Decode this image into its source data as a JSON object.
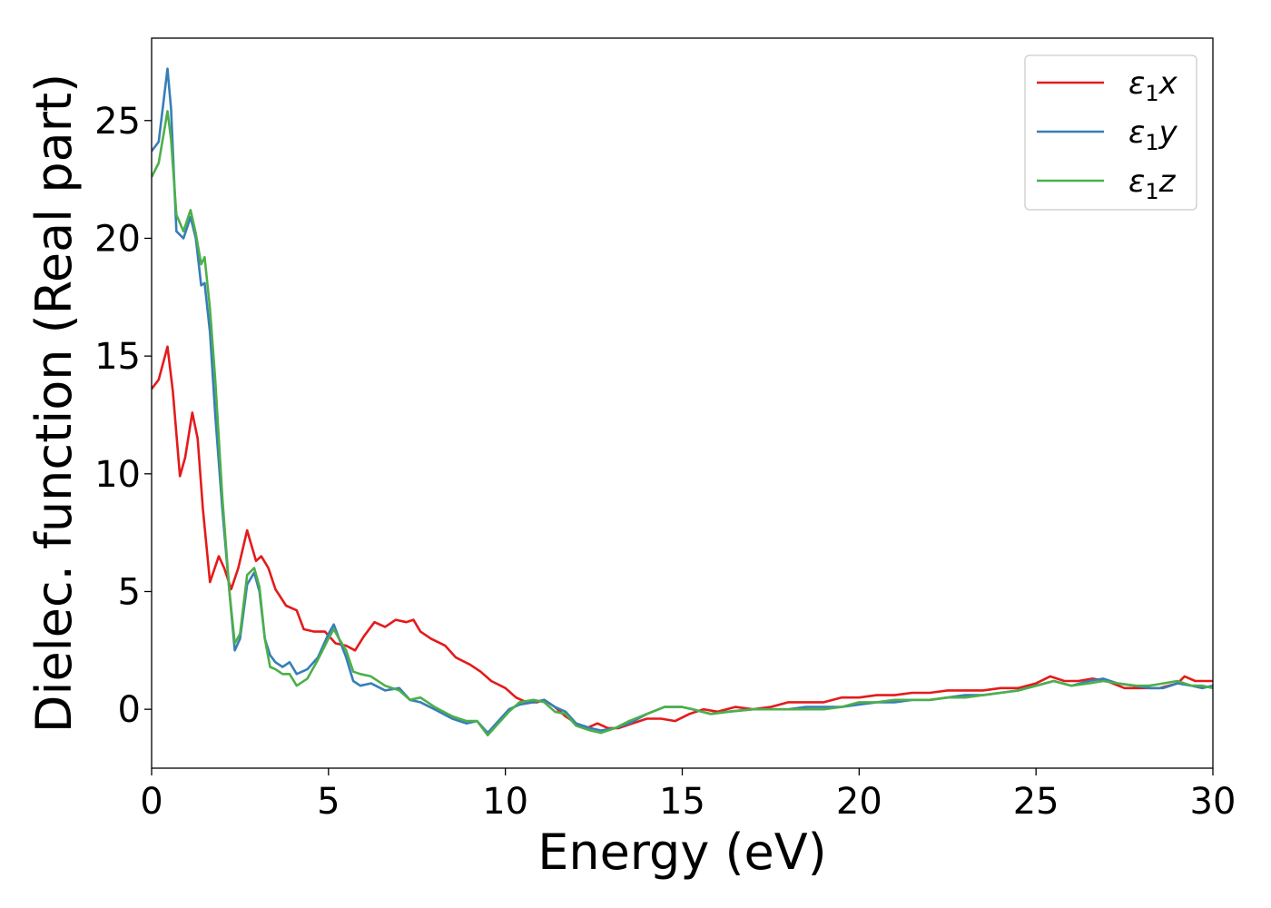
{
  "chart_data": {
    "type": "line",
    "title": "",
    "xlabel": "Energy (eV)",
    "ylabel": "Dielec. function (Real part)",
    "xlim": [
      0,
      30
    ],
    "ylim": [
      -2.5,
      28.5
    ],
    "xticks": [
      0,
      5,
      10,
      15,
      20,
      25,
      30
    ],
    "yticks": [
      0,
      5,
      10,
      15,
      20,
      25
    ],
    "grid": false,
    "legend_position": "top-right",
    "series": [
      {
        "name": "ε₁x",
        "legend": {
          "main": "ε",
          "sub": "1",
          "suffix": "x"
        },
        "color": "#e41a1c",
        "points": [
          [
            0,
            13.6
          ],
          [
            0.2,
            14.0
          ],
          [
            0.45,
            15.4
          ],
          [
            0.6,
            13.5
          ],
          [
            0.8,
            9.9
          ],
          [
            0.95,
            10.7
          ],
          [
            1.15,
            12.6
          ],
          [
            1.3,
            11.5
          ],
          [
            1.45,
            8.5
          ],
          [
            1.65,
            5.4
          ],
          [
            1.9,
            6.5
          ],
          [
            2.05,
            6.0
          ],
          [
            2.25,
            5.1
          ],
          [
            2.45,
            6.0
          ],
          [
            2.7,
            7.6
          ],
          [
            2.95,
            6.3
          ],
          [
            3.1,
            6.5
          ],
          [
            3.3,
            6.0
          ],
          [
            3.5,
            5.1
          ],
          [
            3.8,
            4.4
          ],
          [
            4.1,
            4.2
          ],
          [
            4.3,
            3.4
          ],
          [
            4.6,
            3.3
          ],
          [
            4.9,
            3.3
          ],
          [
            5.2,
            2.8
          ],
          [
            5.5,
            2.7
          ],
          [
            5.75,
            2.5
          ],
          [
            6.0,
            3.1
          ],
          [
            6.3,
            3.7
          ],
          [
            6.6,
            3.5
          ],
          [
            6.9,
            3.8
          ],
          [
            7.2,
            3.7
          ],
          [
            7.4,
            3.8
          ],
          [
            7.6,
            3.3
          ],
          [
            7.9,
            3.0
          ],
          [
            8.3,
            2.7
          ],
          [
            8.6,
            2.2
          ],
          [
            9.0,
            1.9
          ],
          [
            9.3,
            1.6
          ],
          [
            9.6,
            1.2
          ],
          [
            10.0,
            0.9
          ],
          [
            10.3,
            0.5
          ],
          [
            10.6,
            0.3
          ],
          [
            10.9,
            0.3
          ],
          [
            11.1,
            0.4
          ],
          [
            11.4,
            0.1
          ],
          [
            11.7,
            -0.3
          ],
          [
            12.0,
            -0.6
          ],
          [
            12.3,
            -0.8
          ],
          [
            12.6,
            -0.6
          ],
          [
            12.9,
            -0.8
          ],
          [
            13.2,
            -0.8
          ],
          [
            13.6,
            -0.6
          ],
          [
            14.0,
            -0.4
          ],
          [
            14.4,
            -0.4
          ],
          [
            14.8,
            -0.5
          ],
          [
            15.2,
            -0.2
          ],
          [
            15.6,
            0.0
          ],
          [
            16.0,
            -0.1
          ],
          [
            16.5,
            0.1
          ],
          [
            17.0,
            0.0
          ],
          [
            17.5,
            0.1
          ],
          [
            18.0,
            0.3
          ],
          [
            18.5,
            0.3
          ],
          [
            19.0,
            0.3
          ],
          [
            19.5,
            0.5
          ],
          [
            20.0,
            0.5
          ],
          [
            20.5,
            0.6
          ],
          [
            21.0,
            0.6
          ],
          [
            21.5,
            0.7
          ],
          [
            22.0,
            0.7
          ],
          [
            22.5,
            0.8
          ],
          [
            23.0,
            0.8
          ],
          [
            23.5,
            0.8
          ],
          [
            24.0,
            0.9
          ],
          [
            24.5,
            0.9
          ],
          [
            25.0,
            1.1
          ],
          [
            25.4,
            1.4
          ],
          [
            25.8,
            1.2
          ],
          [
            26.2,
            1.2
          ],
          [
            26.6,
            1.3
          ],
          [
            27.0,
            1.2
          ],
          [
            27.5,
            0.9
          ],
          [
            28.0,
            0.9
          ],
          [
            28.5,
            0.9
          ],
          [
            29.0,
            1.1
          ],
          [
            29.2,
            1.4
          ],
          [
            29.5,
            1.2
          ],
          [
            30.0,
            1.2
          ]
        ]
      },
      {
        "name": "ε₁y",
        "legend": {
          "main": "ε",
          "sub": "1",
          "suffix": "y"
        },
        "color": "#377eb8",
        "points": [
          [
            0,
            23.7
          ],
          [
            0.2,
            24.1
          ],
          [
            0.45,
            27.2
          ],
          [
            0.55,
            25.5
          ],
          [
            0.7,
            20.3
          ],
          [
            0.9,
            20.0
          ],
          [
            1.1,
            20.9
          ],
          [
            1.25,
            20.0
          ],
          [
            1.4,
            18.0
          ],
          [
            1.5,
            18.1
          ],
          [
            1.65,
            16.0
          ],
          [
            1.8,
            12.5
          ],
          [
            2.0,
            8.5
          ],
          [
            2.2,
            5.0
          ],
          [
            2.35,
            2.5
          ],
          [
            2.5,
            3.0
          ],
          [
            2.7,
            5.3
          ],
          [
            2.9,
            5.8
          ],
          [
            3.05,
            5.0
          ],
          [
            3.2,
            3.0
          ],
          [
            3.35,
            2.3
          ],
          [
            3.5,
            2.0
          ],
          [
            3.7,
            1.8
          ],
          [
            3.9,
            2.0
          ],
          [
            4.1,
            1.5
          ],
          [
            4.4,
            1.7
          ],
          [
            4.7,
            2.2
          ],
          [
            5.0,
            3.2
          ],
          [
            5.15,
            3.6
          ],
          [
            5.3,
            3.0
          ],
          [
            5.5,
            2.2
          ],
          [
            5.7,
            1.2
          ],
          [
            5.9,
            1.0
          ],
          [
            6.2,
            1.1
          ],
          [
            6.6,
            0.8
          ],
          [
            7.0,
            0.9
          ],
          [
            7.3,
            0.4
          ],
          [
            7.6,
            0.3
          ],
          [
            8.0,
            0.0
          ],
          [
            8.5,
            -0.4
          ],
          [
            8.9,
            -0.6
          ],
          [
            9.2,
            -0.5
          ],
          [
            9.5,
            -1.0
          ],
          [
            9.8,
            -0.5
          ],
          [
            10.1,
            0.0
          ],
          [
            10.4,
            0.2
          ],
          [
            10.8,
            0.3
          ],
          [
            11.1,
            0.4
          ],
          [
            11.4,
            0.1
          ],
          [
            11.7,
            -0.1
          ],
          [
            12.0,
            -0.6
          ],
          [
            12.4,
            -0.8
          ],
          [
            12.7,
            -0.9
          ],
          [
            13.1,
            -0.8
          ],
          [
            13.5,
            -0.6
          ],
          [
            14.0,
            -0.2
          ],
          [
            14.5,
            0.1
          ],
          [
            15.0,
            0.1
          ],
          [
            15.3,
            0.0
          ],
          [
            15.8,
            -0.2
          ],
          [
            16.3,
            -0.1
          ],
          [
            17.0,
            0.0
          ],
          [
            17.5,
            0.0
          ],
          [
            18.0,
            0.0
          ],
          [
            18.5,
            0.1
          ],
          [
            19.0,
            0.1
          ],
          [
            19.5,
            0.1
          ],
          [
            20.0,
            0.2
          ],
          [
            20.5,
            0.3
          ],
          [
            21.0,
            0.3
          ],
          [
            21.5,
            0.4
          ],
          [
            22.0,
            0.4
          ],
          [
            22.5,
            0.5
          ],
          [
            23.0,
            0.6
          ],
          [
            23.5,
            0.6
          ],
          [
            24.0,
            0.7
          ],
          [
            24.5,
            0.8
          ],
          [
            25.0,
            1.0
          ],
          [
            25.5,
            1.2
          ],
          [
            26.0,
            1.0
          ],
          [
            26.5,
            1.2
          ],
          [
            26.9,
            1.3
          ],
          [
            27.3,
            1.1
          ],
          [
            27.8,
            1.0
          ],
          [
            28.2,
            0.9
          ],
          [
            28.6,
            0.9
          ],
          [
            29.0,
            1.1
          ],
          [
            29.4,
            1.0
          ],
          [
            29.7,
            0.9
          ],
          [
            30.0,
            1.0
          ]
        ]
      },
      {
        "name": "ε₁z",
        "legend": {
          "main": "ε",
          "sub": "1",
          "suffix": "z"
        },
        "color": "#4daf4a",
        "points": [
          [
            0,
            22.6
          ],
          [
            0.2,
            23.2
          ],
          [
            0.45,
            25.4
          ],
          [
            0.55,
            24.2
          ],
          [
            0.7,
            21.0
          ],
          [
            0.9,
            20.3
          ],
          [
            1.1,
            21.2
          ],
          [
            1.25,
            20.2
          ],
          [
            1.4,
            18.9
          ],
          [
            1.5,
            19.2
          ],
          [
            1.65,
            17.0
          ],
          [
            1.8,
            14.0
          ],
          [
            2.0,
            9.0
          ],
          [
            2.2,
            5.0
          ],
          [
            2.35,
            2.8
          ],
          [
            2.5,
            3.2
          ],
          [
            2.7,
            5.7
          ],
          [
            2.9,
            6.0
          ],
          [
            3.05,
            5.2
          ],
          [
            3.2,
            3.0
          ],
          [
            3.35,
            1.8
          ],
          [
            3.5,
            1.7
          ],
          [
            3.7,
            1.5
          ],
          [
            3.9,
            1.5
          ],
          [
            4.1,
            1.0
          ],
          [
            4.4,
            1.3
          ],
          [
            4.7,
            2.1
          ],
          [
            5.0,
            3.0
          ],
          [
            5.15,
            3.4
          ],
          [
            5.3,
            3.0
          ],
          [
            5.5,
            2.5
          ],
          [
            5.7,
            1.6
          ],
          [
            5.9,
            1.5
          ],
          [
            6.2,
            1.4
          ],
          [
            6.6,
            1.0
          ],
          [
            7.0,
            0.8
          ],
          [
            7.3,
            0.4
          ],
          [
            7.6,
            0.5
          ],
          [
            8.0,
            0.1
          ],
          [
            8.5,
            -0.3
          ],
          [
            8.9,
            -0.5
          ],
          [
            9.2,
            -0.5
          ],
          [
            9.5,
            -1.1
          ],
          [
            9.8,
            -0.6
          ],
          [
            10.1,
            -0.1
          ],
          [
            10.4,
            0.3
          ],
          [
            10.8,
            0.4
          ],
          [
            11.1,
            0.3
          ],
          [
            11.4,
            -0.1
          ],
          [
            11.7,
            -0.2
          ],
          [
            12.0,
            -0.7
          ],
          [
            12.4,
            -0.9
          ],
          [
            12.7,
            -1.0
          ],
          [
            13.1,
            -0.8
          ],
          [
            13.5,
            -0.5
          ],
          [
            14.0,
            -0.2
          ],
          [
            14.5,
            0.1
          ],
          [
            15.0,
            0.1
          ],
          [
            15.3,
            0.0
          ],
          [
            15.8,
            -0.2
          ],
          [
            16.3,
            -0.1
          ],
          [
            17.0,
            0.0
          ],
          [
            17.5,
            0.0
          ],
          [
            18.0,
            0.0
          ],
          [
            18.5,
            0.0
          ],
          [
            19.0,
            0.0
          ],
          [
            19.5,
            0.1
          ],
          [
            20.0,
            0.3
          ],
          [
            20.5,
            0.3
          ],
          [
            21.0,
            0.4
          ],
          [
            21.5,
            0.4
          ],
          [
            22.0,
            0.4
          ],
          [
            22.5,
            0.5
          ],
          [
            23.0,
            0.5
          ],
          [
            23.5,
            0.6
          ],
          [
            24.0,
            0.7
          ],
          [
            24.5,
            0.8
          ],
          [
            25.0,
            1.0
          ],
          [
            25.5,
            1.2
          ],
          [
            26.0,
            1.0
          ],
          [
            26.5,
            1.1
          ],
          [
            26.9,
            1.2
          ],
          [
            27.3,
            1.1
          ],
          [
            27.8,
            1.0
          ],
          [
            28.2,
            1.0
          ],
          [
            28.6,
            1.1
          ],
          [
            29.0,
            1.2
          ],
          [
            29.4,
            1.0
          ],
          [
            29.7,
            1.0
          ],
          [
            30.0,
            0.9
          ]
        ]
      }
    ]
  }
}
